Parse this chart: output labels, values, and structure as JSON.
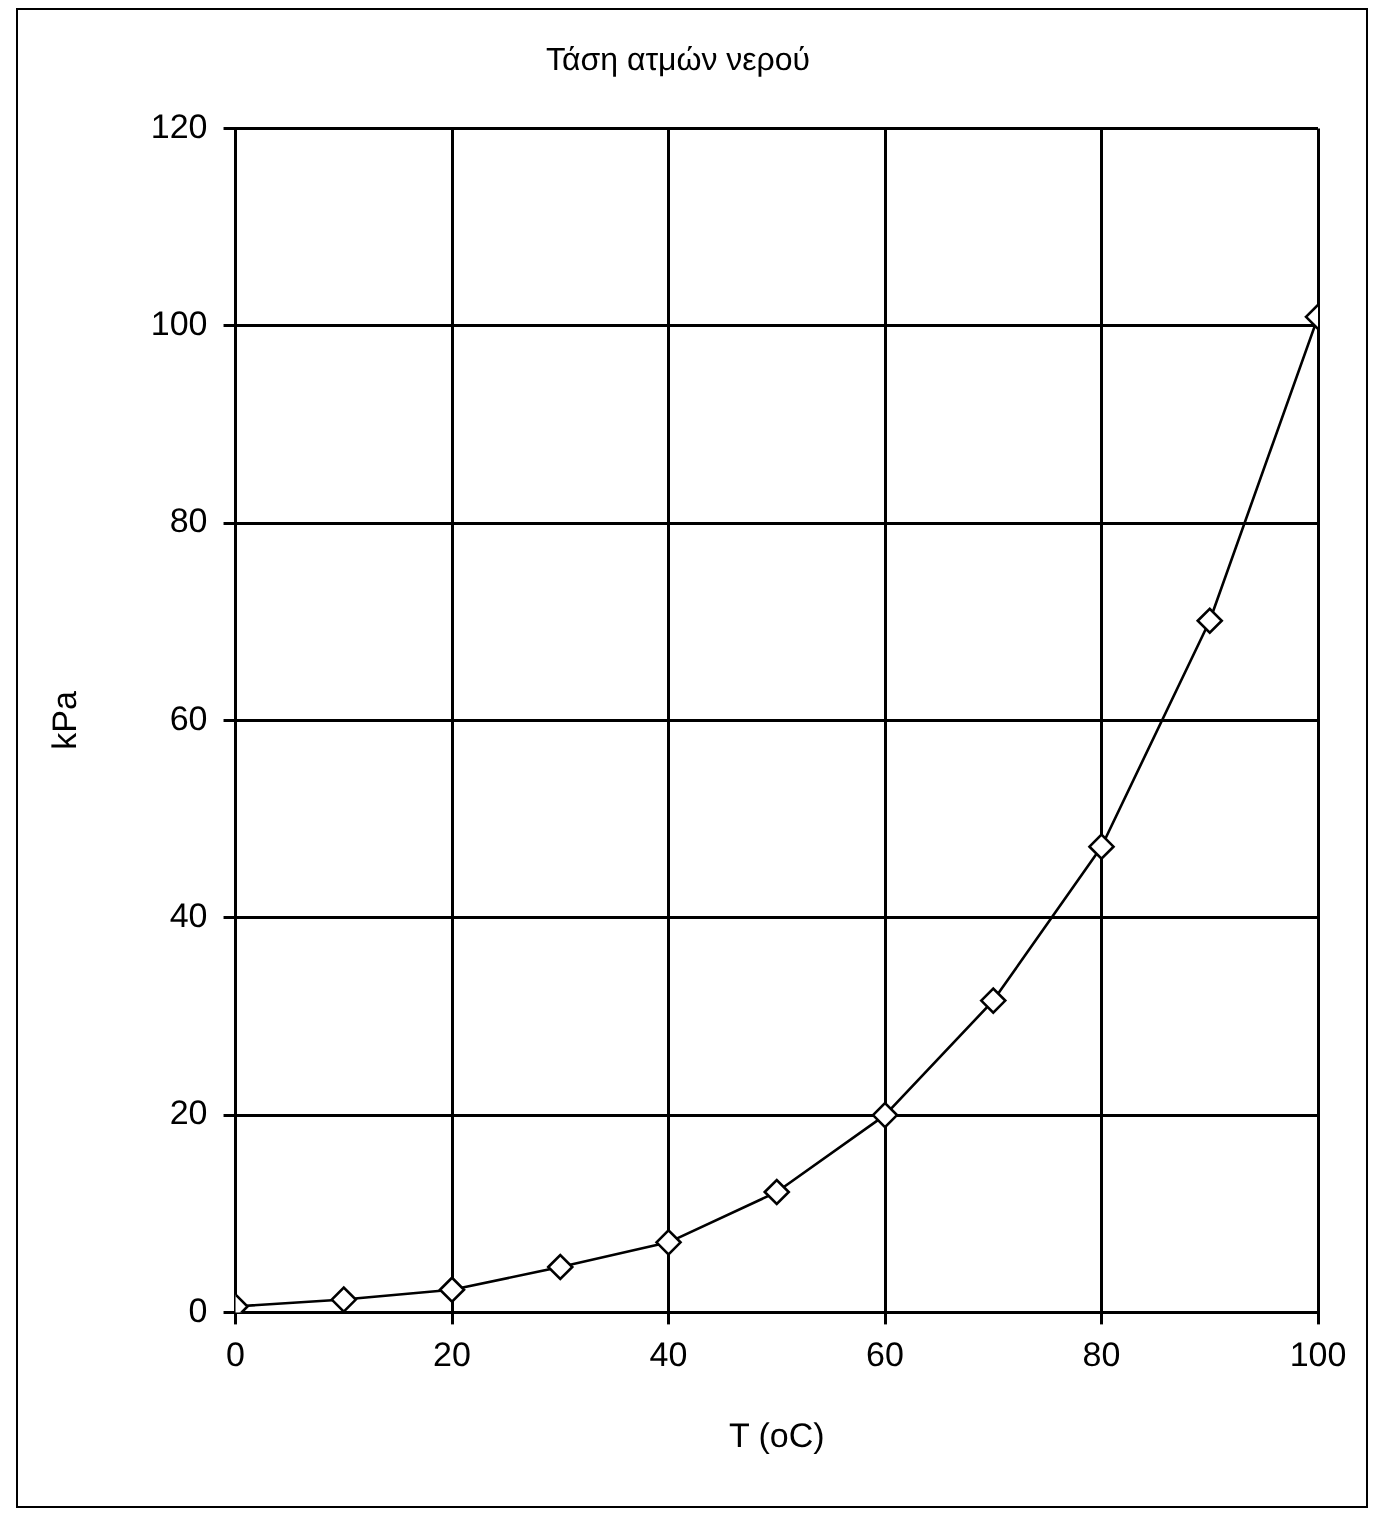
{
  "chart_data": {
    "type": "line",
    "title": "Τάση ατμών νερού",
    "xlabel": "T (oC)",
    "ylabel": "kPa",
    "x": [
      0,
      10,
      20,
      30,
      40,
      50,
      60,
      70,
      80,
      90,
      100
    ],
    "series": [
      {
        "color": "#000000",
        "values": [
          0.6,
          1.3,
          2.3,
          4.6,
          7.1,
          12.2,
          20,
          31.6,
          47.2,
          70.1,
          100.9
        ]
      }
    ],
    "xlim": [
      0,
      100
    ],
    "xticks": [
      0,
      20,
      40,
      60,
      80,
      100
    ],
    "ylim": [
      0,
      120
    ],
    "yticks": [
      0,
      20,
      40,
      60,
      80,
      100,
      120
    ],
    "grid": true,
    "legend": false,
    "marker": "diamond",
    "line_style": "solid"
  }
}
